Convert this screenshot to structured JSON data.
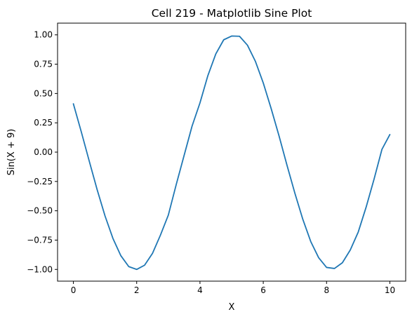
{
  "chart_data": {
    "type": "line",
    "title": "Cell 219 - Matplotlib Sine Plot",
    "xlabel": "X",
    "ylabel": "Sin(X + 9)",
    "xlim": [
      -0.5,
      10.5
    ],
    "ylim": [
      -1.1,
      1.1
    ],
    "xticks": [
      0,
      2,
      4,
      6,
      8,
      10
    ],
    "xtick_labels": [
      "0",
      "2",
      "4",
      "6",
      "8",
      "10"
    ],
    "yticks": [
      -1.0,
      -0.75,
      -0.5,
      -0.25,
      0.0,
      0.25,
      0.5,
      0.75,
      1.0
    ],
    "ytick_labels": [
      "−1.00",
      "−0.75",
      "−0.50",
      "−0.25",
      "0.00",
      "0.25",
      "0.50",
      "0.75",
      "1.00"
    ],
    "grid": false,
    "series": [
      {
        "color": "#1f77b4",
        "x": [
          0,
          0.25,
          0.5,
          0.75,
          1,
          1.25,
          1.5,
          1.75,
          2,
          2.25,
          2.5,
          2.75,
          3,
          3.25,
          3.5,
          3.75,
          4,
          4.25,
          4.5,
          4.75,
          5,
          5.25,
          5.5,
          5.75,
          6,
          6.25,
          6.5,
          6.75,
          7,
          7.25,
          7.5,
          7.75,
          8,
          8.25,
          8.5,
          8.75,
          9,
          9.25,
          9.5,
          9.75,
          10
        ],
        "y": [
          0.412,
          0.173,
          -0.075,
          -0.319,
          -0.544,
          -0.736,
          -0.883,
          -0.976,
          -1.0,
          -0.964,
          -0.863,
          -0.708,
          -0.537,
          -0.276,
          -0.027,
          0.222,
          0.42,
          0.653,
          0.837,
          0.958,
          0.99,
          0.988,
          0.912,
          0.775,
          0.59,
          0.371,
          0.137,
          -0.112,
          -0.351,
          -0.573,
          -0.762,
          -0.9,
          -0.983,
          -0.992,
          -0.943,
          -0.834,
          -0.682,
          -0.469,
          -0.231,
          0.024,
          0.15
        ]
      }
    ]
  }
}
